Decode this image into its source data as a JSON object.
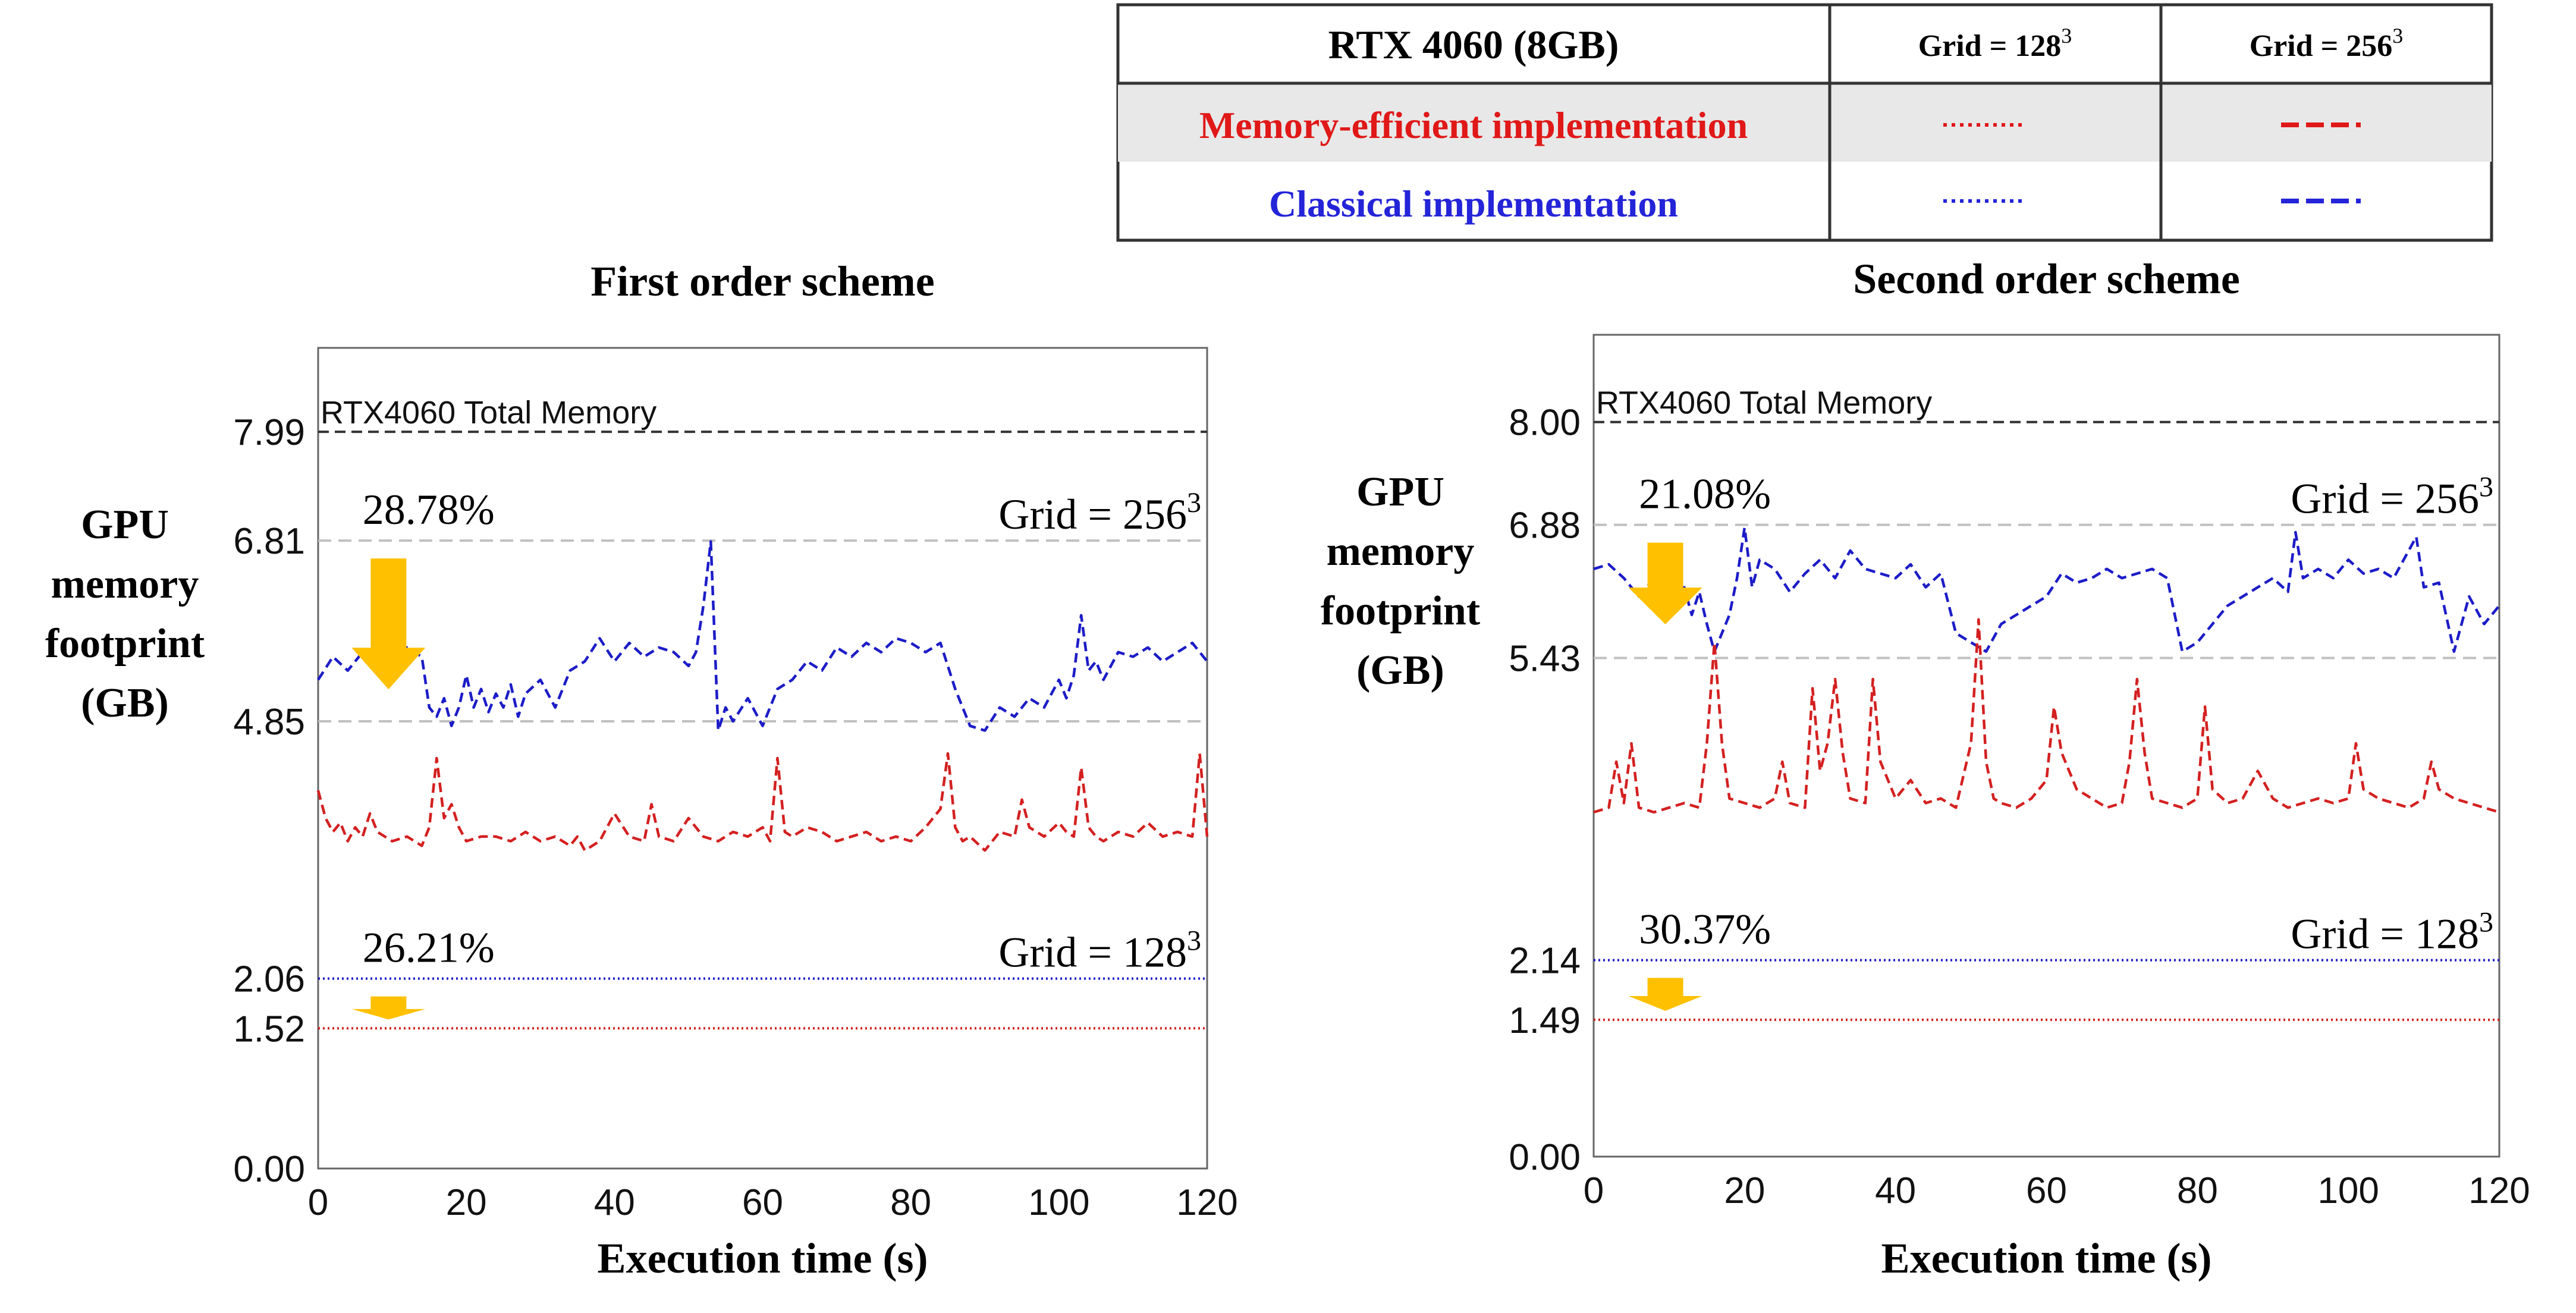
{
  "legend": {
    "header": "RTX 4060 (8GB)",
    "col1": "Grid = 128",
    "col2": "Grid = 256",
    "exponent": "3",
    "rows": [
      {
        "label": "Memory-efficient implementation",
        "color": "#e01818"
      },
      {
        "label": "Classical implementation",
        "color": "#2424d8"
      }
    ]
  },
  "colors": {
    "memory_efficient": "#d42020",
    "classical": "#1c1cc8",
    "arrow": "#ffc000",
    "ref_line": "#c0c0c0",
    "total_line": "#333333"
  },
  "chart_data": [
    {
      "type": "line",
      "title": "First order scheme",
      "xlabel": "Execution time (s)",
      "ylabel": [
        "GPU",
        "memory",
        "footprint",
        "(GB)"
      ],
      "xlim": [
        0,
        120
      ],
      "ylim": [
        0,
        8.9
      ],
      "xticks": [
        0,
        20,
        40,
        60,
        80,
        100,
        120
      ],
      "yticks": [
        "0.00",
        "1.52",
        "2.06",
        "4.85",
        "6.81",
        "7.99"
      ],
      "total_memory": {
        "value": 7.99,
        "label": "RTX4060 Total Memory"
      },
      "ref_lines": [
        6.81,
        4.85
      ],
      "grid_labels": {
        "big": {
          "text": "Grid = 256",
          "exp": "3",
          "y": 6.81
        },
        "small": {
          "text": "Grid = 128",
          "exp": "3",
          "y": 2.06
        }
      },
      "reductions": [
        {
          "text": "28.78%",
          "from": 6.81,
          "arrow_top": 6.81,
          "arrow_bottom": 5.1
        },
        {
          "text": "26.21%",
          "from": 2.06,
          "arrow_top": 2.06,
          "arrow_bottom": 1.52
        }
      ],
      "series": [
        {
          "name": "Classical implementation, Grid = 256³",
          "style": "dash",
          "color_key": "classical",
          "x": [
            0,
            2,
            4,
            6,
            8,
            10,
            12,
            14,
            15,
            16,
            17,
            18,
            19,
            20,
            21,
            22,
            23,
            24,
            25,
            26,
            27,
            28,
            30,
            32,
            34,
            36,
            38,
            40,
            42,
            44,
            46,
            48,
            50,
            51,
            52,
            53,
            54,
            55,
            56,
            58,
            60,
            62,
            64,
            66,
            68,
            70,
            72,
            74,
            76,
            78,
            80,
            82,
            84,
            86,
            88,
            90,
            92,
            94,
            96,
            98,
            100,
            101,
            102,
            103,
            104,
            105,
            106,
            108,
            110,
            112,
            114,
            116,
            118,
            120
          ],
          "y": [
            5.3,
            5.55,
            5.4,
            5.6,
            5.5,
            5.45,
            5.65,
            5.55,
            5.0,
            4.9,
            5.1,
            4.8,
            5.0,
            5.35,
            5.0,
            5.2,
            4.95,
            5.15,
            5.0,
            5.25,
            4.9,
            5.15,
            5.3,
            5.0,
            5.4,
            5.5,
            5.75,
            5.5,
            5.7,
            5.55,
            5.65,
            5.6,
            5.45,
            5.6,
            6.1,
            6.8,
            4.75,
            5.0,
            4.85,
            5.1,
            4.8,
            5.2,
            5.3,
            5.5,
            5.4,
            5.65,
            5.55,
            5.7,
            5.6,
            5.75,
            5.7,
            5.6,
            5.7,
            5.2,
            4.8,
            4.75,
            5.0,
            4.9,
            5.1,
            5.0,
            5.3,
            5.1,
            5.35,
            6.0,
            5.4,
            5.5,
            5.3,
            5.6,
            5.55,
            5.65,
            5.5,
            5.6,
            5.7,
            5.5
          ]
        },
        {
          "name": "Memory-efficient implementation, Grid = 256³",
          "style": "dash",
          "color_key": "memory_efficient",
          "x": [
            0,
            1,
            2,
            3,
            4,
            5,
            6,
            7,
            8,
            10,
            12,
            14,
            15,
            16,
            17,
            18,
            19,
            20,
            22,
            24,
            26,
            28,
            30,
            32,
            34,
            35,
            36,
            38,
            40,
            42,
            44,
            45,
            46,
            48,
            50,
            52,
            54,
            56,
            58,
            60,
            61,
            62,
            63,
            64,
            66,
            68,
            70,
            72,
            74,
            76,
            78,
            80,
            82,
            84,
            85,
            86,
            87,
            88,
            90,
            92,
            94,
            95,
            96,
            98,
            100,
            101,
            102,
            103,
            104,
            105,
            106,
            108,
            110,
            112,
            114,
            116,
            118,
            119,
            120
          ],
          "y": [
            4.1,
            3.8,
            3.65,
            3.75,
            3.55,
            3.7,
            3.6,
            3.85,
            3.65,
            3.55,
            3.6,
            3.5,
            3.7,
            4.45,
            3.8,
            3.95,
            3.7,
            3.55,
            3.6,
            3.6,
            3.55,
            3.65,
            3.55,
            3.6,
            3.5,
            3.6,
            3.45,
            3.55,
            3.85,
            3.6,
            3.55,
            3.95,
            3.6,
            3.55,
            3.8,
            3.6,
            3.55,
            3.65,
            3.6,
            3.7,
            3.55,
            4.45,
            3.65,
            3.6,
            3.7,
            3.65,
            3.55,
            3.6,
            3.65,
            3.55,
            3.6,
            3.55,
            3.7,
            3.9,
            4.5,
            3.7,
            3.55,
            3.6,
            3.45,
            3.65,
            3.6,
            4.0,
            3.7,
            3.6,
            3.75,
            3.65,
            3.6,
            4.35,
            3.7,
            3.6,
            3.55,
            3.65,
            3.6,
            3.75,
            3.6,
            3.65,
            3.6,
            4.5,
            3.6
          ]
        },
        {
          "name": "Classical implementation, Grid = 128³",
          "style": "dot",
          "color_key": "classical",
          "x": [
            0,
            120
          ],
          "y": [
            2.06,
            2.06
          ]
        },
        {
          "name": "Memory-efficient implementation, Grid = 128³",
          "style": "dot",
          "color_key": "memory_efficient",
          "x": [
            0,
            120
          ],
          "y": [
            1.52,
            1.52
          ]
        }
      ]
    },
    {
      "type": "line",
      "title": "Second order scheme",
      "xlabel": "Execution time (s)",
      "ylabel": [
        "GPU",
        "memory",
        "footprint",
        "(GB)"
      ],
      "xlim": [
        0,
        120
      ],
      "ylim": [
        0,
        8.95
      ],
      "xticks": [
        0,
        20,
        40,
        60,
        80,
        100,
        120
      ],
      "yticks": [
        "0.00",
        "1.49",
        "2.14",
        "5.43",
        "6.88",
        "8.00"
      ],
      "total_memory": {
        "value": 8.0,
        "label": "RTX4060 Total Memory"
      },
      "ref_lines": [
        6.88,
        5.43
      ],
      "grid_labels": {
        "big": {
          "text": "Grid = 256",
          "exp": "3",
          "y": 6.88
        },
        "small": {
          "text": "Grid = 128",
          "exp": "3",
          "y": 2.14
        }
      },
      "reductions": [
        {
          "text": "21.08%",
          "from": 6.88,
          "arrow_top": 6.88,
          "arrow_bottom": 5.7
        },
        {
          "text": "30.37%",
          "from": 2.14,
          "arrow_top": 2.14,
          "arrow_bottom": 1.49
        }
      ],
      "series": [
        {
          "name": "Classical implementation, Grid = 256³",
          "style": "dash",
          "color_key": "classical",
          "x": [
            0,
            2,
            4,
            6,
            8,
            10,
            12,
            13,
            14,
            15,
            16,
            18,
            19,
            20,
            21,
            22,
            24,
            26,
            28,
            30,
            32,
            34,
            36,
            38,
            40,
            42,
            44,
            46,
            48,
            50,
            52,
            54,
            56,
            58,
            60,
            62,
            64,
            66,
            68,
            70,
            72,
            74,
            76,
            78,
            80,
            82,
            84,
            86,
            88,
            90,
            92,
            93,
            94,
            96,
            98,
            100,
            102,
            104,
            106,
            108,
            109,
            110,
            112,
            114,
            116,
            118,
            120
          ],
          "y": [
            6.4,
            6.45,
            6.3,
            6.1,
            6.3,
            6.0,
            6.2,
            5.9,
            6.15,
            5.8,
            5.5,
            5.9,
            6.3,
            6.85,
            6.2,
            6.5,
            6.4,
            6.15,
            6.35,
            6.5,
            6.3,
            6.6,
            6.4,
            6.35,
            6.3,
            6.45,
            6.2,
            6.35,
            5.7,
            5.6,
            5.5,
            5.8,
            5.9,
            6.0,
            6.1,
            6.35,
            6.25,
            6.3,
            6.4,
            6.3,
            6.35,
            6.4,
            6.3,
            5.5,
            5.6,
            5.8,
            6.0,
            6.1,
            6.2,
            6.3,
            6.15,
            6.8,
            6.3,
            6.4,
            6.3,
            6.5,
            6.35,
            6.4,
            6.3,
            6.6,
            6.75,
            6.2,
            6.25,
            5.5,
            6.1,
            5.8,
            6.0
          ]
        },
        {
          "name": "Memory-efficient implementation, Grid = 256³",
          "style": "dash",
          "color_key": "memory_efficient",
          "x": [
            0,
            2,
            3,
            4,
            5,
            6,
            8,
            10,
            12,
            14,
            15,
            16,
            17,
            18,
            20,
            22,
            24,
            25,
            26,
            28,
            29,
            30,
            31,
            32,
            33,
            34,
            36,
            37,
            38,
            40,
            42,
            44,
            46,
            48,
            50,
            51,
            52,
            53,
            54,
            56,
            58,
            60,
            61,
            62,
            64,
            66,
            68,
            70,
            71,
            72,
            73,
            74,
            76,
            78,
            80,
            81,
            82,
            84,
            86,
            88,
            90,
            92,
            94,
            96,
            98,
            100,
            101,
            102,
            104,
            106,
            108,
            110,
            111,
            112,
            114,
            116,
            118,
            120
          ],
          "y": [
            3.75,
            3.8,
            4.3,
            3.85,
            4.5,
            3.8,
            3.75,
            3.8,
            3.85,
            3.8,
            4.5,
            5.6,
            4.5,
            3.9,
            3.85,
            3.8,
            3.9,
            4.3,
            3.85,
            3.8,
            5.1,
            4.2,
            4.5,
            5.2,
            4.4,
            3.9,
            3.85,
            5.2,
            4.3,
            3.9,
            4.1,
            3.85,
            3.9,
            3.8,
            4.5,
            5.85,
            4.3,
            3.9,
            3.85,
            3.8,
            3.9,
            4.1,
            4.9,
            4.4,
            4.0,
            3.9,
            3.8,
            3.85,
            4.3,
            5.2,
            4.4,
            3.9,
            3.85,
            3.8,
            3.9,
            4.9,
            4.0,
            3.85,
            3.9,
            4.2,
            3.9,
            3.8,
            3.85,
            3.9,
            3.85,
            3.9,
            4.5,
            4.0,
            3.9,
            3.85,
            3.8,
            3.9,
            4.3,
            4.0,
            3.9,
            3.85,
            3.8,
            3.75
          ]
        },
        {
          "name": "Classical implementation, Grid = 128³",
          "style": "dot",
          "color_key": "classical",
          "x": [
            0,
            120
          ],
          "y": [
            2.14,
            2.14
          ]
        },
        {
          "name": "Memory-efficient implementation, Grid = 128³",
          "style": "dot",
          "color_key": "memory_efficient",
          "x": [
            0,
            120
          ],
          "y": [
            1.49,
            1.49
          ]
        }
      ]
    }
  ]
}
